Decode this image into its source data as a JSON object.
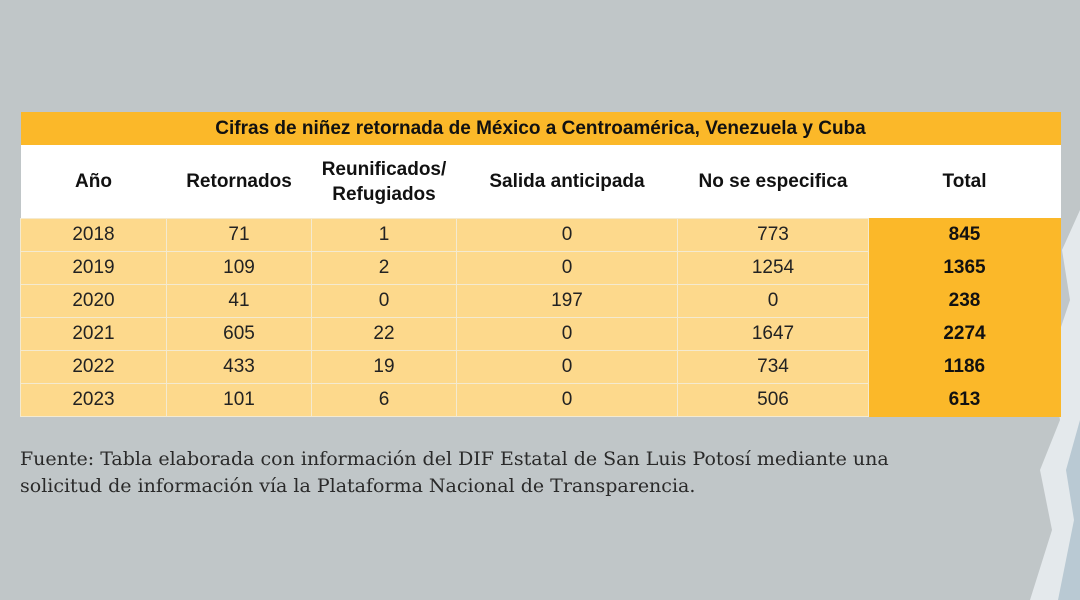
{
  "table": {
    "title": "Cifras de niñez retornada de México a Centroamérica, Venezuela y Cuba",
    "header": [
      "Año",
      "Retornados",
      "Reunificados/ Refugiados",
      "Salida anticipada",
      "No se especifica",
      "Total"
    ],
    "rows": [
      [
        2018,
        71,
        1,
        0,
        773,
        845
      ],
      [
        2019,
        109,
        2,
        0,
        1254,
        1365
      ],
      [
        2020,
        41,
        0,
        197,
        0,
        238
      ],
      [
        2021,
        605,
        22,
        0,
        1647,
        2274
      ],
      [
        2022,
        433,
        19,
        0,
        734,
        1186
      ],
      [
        2023,
        101,
        6,
        0,
        506,
        613
      ]
    ]
  },
  "source": "Fuente: Tabla elaborada con información del DIF Estatal de San Luis Potosí mediante una solicitud de información vía la Plataforma Nacional de Transparencia."
}
